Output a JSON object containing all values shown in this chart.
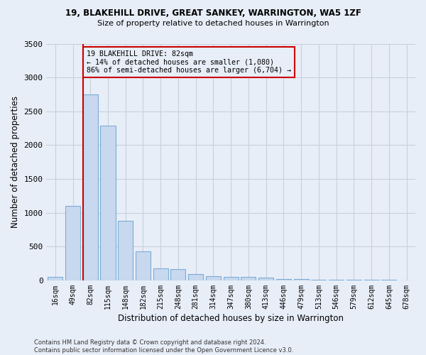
{
  "title_line1": "19, BLAKEHILL DRIVE, GREAT SANKEY, WARRINGTON, WA5 1ZF",
  "title_line2": "Size of property relative to detached houses in Warrington",
  "xlabel": "Distribution of detached houses by size in Warrington",
  "ylabel": "Number of detached properties",
  "categories": [
    "16sqm",
    "49sqm",
    "82sqm",
    "115sqm",
    "148sqm",
    "182sqm",
    "215sqm",
    "248sqm",
    "281sqm",
    "314sqm",
    "347sqm",
    "380sqm",
    "413sqm",
    "446sqm",
    "479sqm",
    "513sqm",
    "546sqm",
    "579sqm",
    "612sqm",
    "645sqm",
    "678sqm"
  ],
  "values": [
    55,
    1100,
    2750,
    2290,
    880,
    430,
    175,
    170,
    95,
    65,
    55,
    50,
    40,
    25,
    20,
    10,
    10,
    8,
    5,
    5,
    3
  ],
  "bar_color": "#c8d8ee",
  "bar_edge_color": "#7badd4",
  "highlight_index": 2,
  "highlight_line_color": "#cc0000",
  "ylim": [
    0,
    3500
  ],
  "yticks": [
    0,
    500,
    1000,
    1500,
    2000,
    2500,
    3000,
    3500
  ],
  "annotation_text": "19 BLAKEHILL DRIVE: 82sqm\n← 14% of detached houses are smaller (1,080)\n86% of semi-detached houses are larger (6,704) →",
  "annotation_box_color": "#cc0000",
  "background_color": "#e8eef8",
  "grid_color": "#c8d0dc",
  "title_fontsize": 8.5,
  "subtitle_fontsize": 8,
  "footnote": "Contains HM Land Registry data © Crown copyright and database right 2024.\nContains public sector information licensed under the Open Government Licence v3.0."
}
